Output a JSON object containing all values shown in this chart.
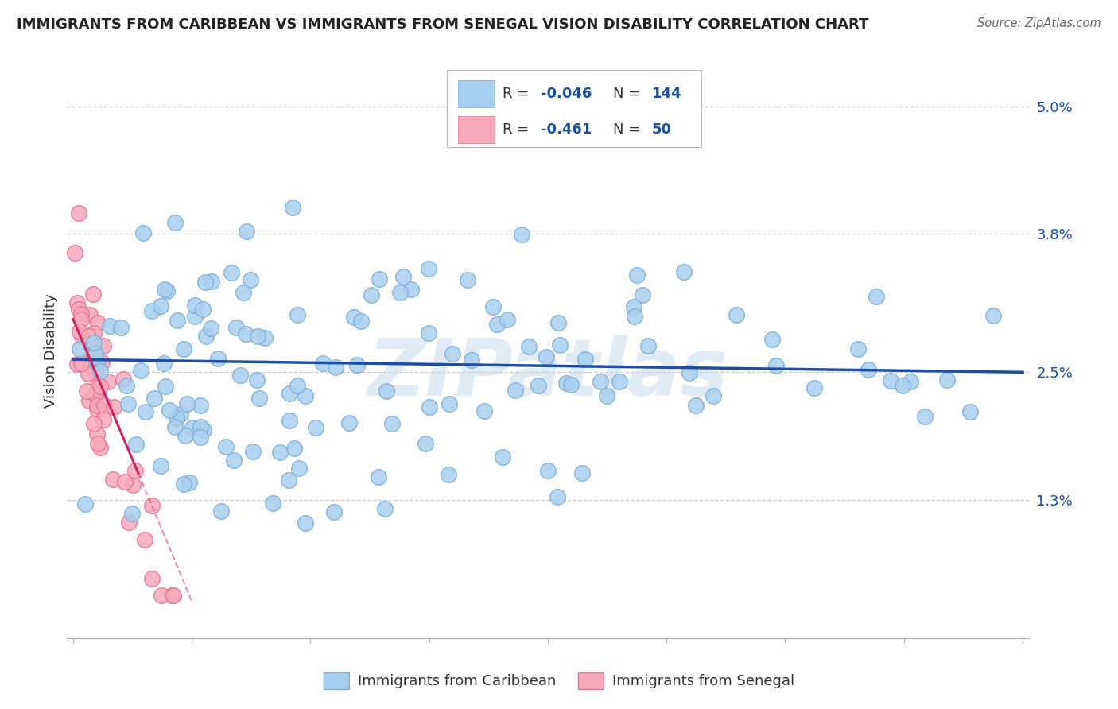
{
  "title": "IMMIGRANTS FROM CARIBBEAN VS IMMIGRANTS FROM SENEGAL VISION DISABILITY CORRELATION CHART",
  "source": "Source: ZipAtlas.com",
  "ylabel": "Vision Disability",
  "xlim": [
    -0.5,
    80.5
  ],
  "ylim": [
    0.0,
    5.4
  ],
  "ytick_vals": [
    1.3,
    2.5,
    3.8,
    5.0
  ],
  "ytick_labels": [
    "1.3%",
    "2.5%",
    "3.8%",
    "5.0%"
  ],
  "blue_color": "#A8CFEE",
  "blue_edge_color": "#7BADD8",
  "pink_color": "#F5AABB",
  "pink_edge_color": "#E87090",
  "blue_line_color": "#1B4EA8",
  "pink_line_color": "#D42060",
  "background_color": "#FFFFFF",
  "grid_color": "#CCCCCC",
  "R_blue": -0.046,
  "N_blue": 144,
  "R_pink": -0.461,
  "N_pink": 50,
  "legend_label_blue": "Immigrants from Caribbean",
  "legend_label_pink": "Immigrants from Senegal",
  "watermark": "ZIPatlas",
  "blue_line_x0": 0,
  "blue_line_x1": 80,
  "blue_line_y0": 2.62,
  "blue_line_y1": 2.5,
  "pink_line_x0": 0,
  "pink_line_x1": 5.5,
  "pink_line_y0": 3.0,
  "pink_line_y1": 1.55,
  "pink_dash_x0": 5.5,
  "pink_dash_x1": 10.0,
  "pink_dash_y0": 1.55,
  "pink_dash_y1": 0.35
}
